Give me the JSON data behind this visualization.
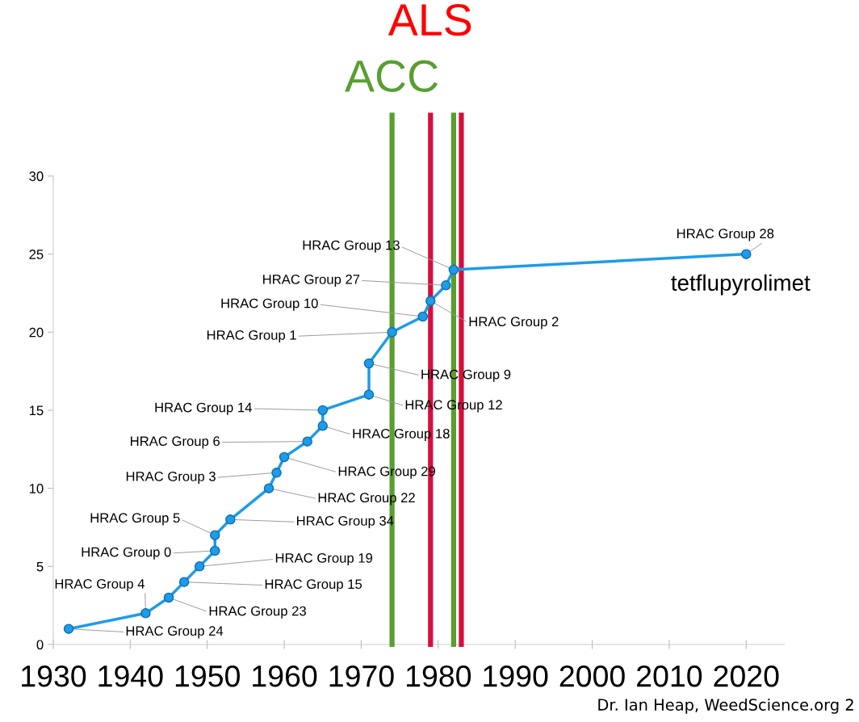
{
  "chart_data": {
    "type": "line",
    "x": [
      1932,
      1942,
      1945,
      1947,
      1949,
      1951,
      1951,
      1953,
      1958,
      1959,
      1960,
      1963,
      1965,
      1965,
      1971,
      1971,
      1974,
      1978,
      1979,
      1981,
      1982,
      2020
    ],
    "series": [
      {
        "color": "#1e9be9",
        "values": [
          1,
          2,
          3,
          4,
          5,
          6,
          7,
          8,
          10,
          11,
          12,
          13,
          14,
          15,
          16,
          18,
          20,
          21,
          22,
          23,
          24,
          25
        ]
      }
    ],
    "marker": "circle",
    "line_style": "solid",
    "grid": false,
    "legend": false,
    "xlim": [
      1930,
      2025
    ],
    "xticks": [
      1930,
      1940,
      1950,
      1960,
      1970,
      1980,
      1990,
      2000,
      2010,
      2020
    ],
    "ylim": [
      0,
      30
    ],
    "yticks": [
      0,
      5,
      10,
      15,
      20,
      25,
      30
    ],
    "ref_lines": [
      {
        "axis": "x",
        "value": 1974,
        "label": "ACC",
        "color": "#5a9e32"
      },
      {
        "axis": "x",
        "value": 1979,
        "label": "ALS",
        "color": "#d4103e"
      },
      {
        "axis": "x",
        "value": 1982,
        "label": null,
        "color": "#5a9e32"
      },
      {
        "axis": "x",
        "value": 1983,
        "label": null,
        "color": "#d4103e"
      }
    ],
    "annotations": [
      {
        "text": "HRAC Group 24",
        "x": 1932,
        "y": 1
      },
      {
        "text": "HRAC Group 4",
        "x": 1942,
        "y": 2
      },
      {
        "text": "HRAC Group 23",
        "x": 1945,
        "y": 3
      },
      {
        "text": "HRAC Group 15",
        "x": 1947,
        "y": 4
      },
      {
        "text": "HRAC Group 19",
        "x": 1949,
        "y": 5
      },
      {
        "text": "HRAC Group 0",
        "x": 1951,
        "y": 6
      },
      {
        "text": "HRAC Group 5",
        "x": 1951,
        "y": 7
      },
      {
        "text": "HRAC Group 34",
        "x": 1953,
        "y": 8
      },
      {
        "text": "HRAC Group 22",
        "x": 1958,
        "y": 10
      },
      {
        "text": "HRAC Group 3",
        "x": 1959,
        "y": 11
      },
      {
        "text": "HRAC Group 29",
        "x": 1960,
        "y": 12
      },
      {
        "text": "HRAC Group 6",
        "x": 1963,
        "y": 13
      },
      {
        "text": "HRAC Group 18",
        "x": 1965,
        "y": 14
      },
      {
        "text": "HRAC Group 14",
        "x": 1965,
        "y": 15
      },
      {
        "text": "HRAC Group 12",
        "x": 1971,
        "y": 16
      },
      {
        "text": "HRAC Group 9",
        "x": 1971,
        "y": 18
      },
      {
        "text": "HRAC Group 1",
        "x": 1974,
        "y": 20
      },
      {
        "text": "HRAC Group 10",
        "x": 1978,
        "y": 21
      },
      {
        "text": "HRAC Group 2",
        "x": 1979,
        "y": 22
      },
      {
        "text": "HRAC Group 27",
        "x": 1981,
        "y": 23
      },
      {
        "text": "HRAC Group 13",
        "x": 1982,
        "y": 24
      },
      {
        "text": "HRAC Group 28",
        "x": 2020,
        "y": 25
      },
      {
        "text": "tetflupyrolimet",
        "x": 2020,
        "y": 25
      },
      "Dr. Ian Heap, WeedScience.org 2"
    ]
  }
}
